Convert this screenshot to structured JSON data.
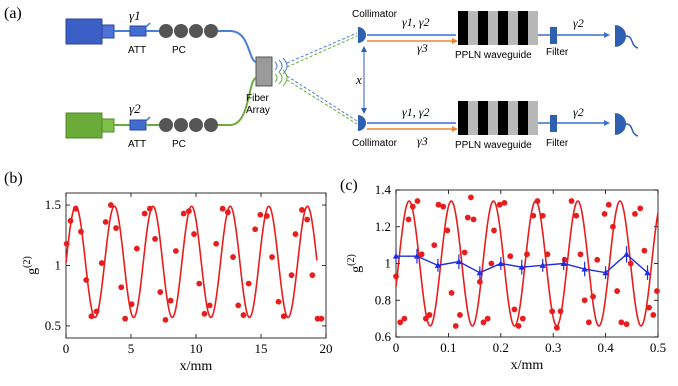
{
  "panel_labels": {
    "a": "(a)",
    "b": "(b)",
    "c": "(c)"
  },
  "setup": {
    "top_source_photon": "γ1",
    "bottom_source_photon": "γ2",
    "att_label": "ATT",
    "pc_label": "PC",
    "fiber_array_line1": "Fiber",
    "fiber_array_line2": "Array",
    "collimator_label": "Collimator",
    "distance_label": "x",
    "input_photons": "γ1, γ2",
    "generated_photon": "γ3",
    "waveguide_label": "PPLN waveguide",
    "filter_label": "Filter",
    "output_photon": "γ2",
    "colors": {
      "top_source": "#3b5fc4",
      "bottom_source": "#6aab3a",
      "fiber_blue": "#4a7fd4",
      "fiber_green": "#6aab3a",
      "pump_orange": "#e8852f",
      "detector": "#2f5fb0"
    }
  },
  "chart_data": [
    {
      "panel": "b",
      "type": "scatter",
      "xlabel": "x/mm",
      "ylabel": "g(2)",
      "xlim": [
        0,
        20
      ],
      "ylim": [
        0.4,
        1.6
      ],
      "xticks": [
        0,
        5,
        10,
        15,
        20
      ],
      "yticks": [
        0.5,
        1,
        1.5
      ],
      "grid": false,
      "fit": {
        "form": "cosine",
        "offset": 1.03,
        "amplitude": 0.46,
        "period": 2.97,
        "phase_peak_at": 0.75,
        "x_range": [
          0,
          19.3
        ],
        "color": "#e81d1d"
      },
      "series": [
        {
          "marker_color": "#e81d1d",
          "points": [
            [
              0.05,
              1.18
            ],
            [
              0.35,
              1.37
            ],
            [
              0.75,
              1.47
            ],
            [
              1.15,
              1.28
            ],
            [
              1.55,
              0.88
            ],
            [
              1.95,
              0.58
            ],
            [
              2.35,
              0.62
            ],
            [
              2.75,
              1.02
            ],
            [
              3.05,
              1.36
            ],
            [
              3.45,
              1.5
            ],
            [
              3.85,
              1.31
            ],
            [
              4.25,
              0.82
            ],
            [
              4.55,
              0.56
            ],
            [
              5.05,
              0.68
            ],
            [
              5.45,
              1.14
            ],
            [
              6.05,
              1.43
            ],
            [
              6.45,
              1.47
            ],
            [
              6.85,
              1.22
            ],
            [
              7.25,
              0.78
            ],
            [
              7.65,
              0.55
            ],
            [
              8.05,
              0.71
            ],
            [
              8.45,
              1.12
            ],
            [
              9.05,
              1.43
            ],
            [
              9.45,
              1.45
            ],
            [
              9.85,
              1.26
            ],
            [
              10.25,
              0.85
            ],
            [
              10.65,
              0.6
            ],
            [
              11.05,
              0.67
            ],
            [
              11.55,
              1.18
            ],
            [
              12.05,
              1.47
            ],
            [
              12.45,
              1.44
            ],
            [
              12.85,
              1.07
            ],
            [
              13.25,
              0.67
            ],
            [
              13.65,
              0.59
            ],
            [
              14.05,
              0.85
            ],
            [
              14.55,
              1.3
            ],
            [
              14.95,
              1.42
            ],
            [
              15.45,
              1.41
            ],
            [
              15.85,
              1.07
            ],
            [
              16.35,
              0.7
            ],
            [
              16.75,
              0.58
            ],
            [
              17.35,
              0.92
            ],
            [
              17.65,
              1.26
            ],
            [
              18.15,
              1.46
            ],
            [
              18.55,
              1.38
            ],
            [
              18.95,
              0.92
            ],
            [
              19.35,
              0.56
            ],
            [
              19.65,
              0.56
            ]
          ]
        }
      ]
    },
    {
      "panel": "c",
      "type": "scatter",
      "xlabel": "x/mm",
      "ylabel": "g(2)",
      "xlim": [
        0,
        0.5
      ],
      "ylim": [
        0.6,
        1.4
      ],
      "xticks": [
        0,
        0.1,
        0.2,
        0.3,
        0.4,
        0.5
      ],
      "yticks": [
        0.6,
        0.8,
        1,
        1.2,
        1.4
      ],
      "grid": false,
      "fit": {
        "form": "cosine",
        "offset": 1.0,
        "amplitude": 0.34,
        "period": 0.0805,
        "phase_peak_at": 0.025,
        "x_range": [
          0,
          0.5
        ],
        "color": "#e81d1d"
      },
      "series": [
        {
          "marker_color": "#e81d1d",
          "points": [
            [
              0.0,
              0.93
            ],
            [
              0.008,
              0.68
            ],
            [
              0.016,
              0.7
            ],
            [
              0.024,
              1.24
            ],
            [
              0.032,
              1.31
            ],
            [
              0.041,
              1.34
            ],
            [
              0.049,
              1.05
            ],
            [
              0.057,
              0.7
            ],
            [
              0.064,
              0.72
            ],
            [
              0.073,
              1.1
            ],
            [
              0.081,
              1.32
            ],
            [
              0.09,
              1.31
            ],
            [
              0.098,
              1.18
            ],
            [
              0.106,
              0.84
            ],
            [
              0.114,
              0.66
            ],
            [
              0.122,
              0.72
            ],
            [
              0.131,
              1.06
            ],
            [
              0.137,
              1.25
            ],
            [
              0.143,
              1.36
            ],
            [
              0.148,
              1.24
            ],
            [
              0.16,
              0.9
            ],
            [
              0.167,
              0.68
            ],
            [
              0.175,
              0.7
            ],
            [
              0.182,
              1.0
            ],
            [
              0.187,
              1.18
            ],
            [
              0.198,
              1.32
            ],
            [
              0.207,
              1.33
            ],
            [
              0.218,
              1.04
            ],
            [
              0.226,
              0.75
            ],
            [
              0.234,
              0.66
            ],
            [
              0.242,
              0.7
            ],
            [
              0.25,
              1.05
            ],
            [
              0.262,
              1.26
            ],
            [
              0.27,
              1.34
            ],
            [
              0.28,
              1.26
            ],
            [
              0.289,
              1.05
            ],
            [
              0.298,
              0.74
            ],
            [
              0.307,
              0.65
            ],
            [
              0.314,
              0.74
            ],
            [
              0.322,
              1.02
            ],
            [
              0.335,
              1.34
            ],
            [
              0.344,
              1.26
            ],
            [
              0.352,
              1.05
            ],
            [
              0.36,
              0.8
            ],
            [
              0.368,
              0.68
            ],
            [
              0.376,
              0.82
            ],
            [
              0.384,
              1.02
            ],
            [
              0.398,
              1.27
            ],
            [
              0.406,
              1.32
            ],
            [
              0.414,
              1.2
            ],
            [
              0.422,
              0.85
            ],
            [
              0.43,
              0.68
            ],
            [
              0.44,
              0.67
            ],
            [
              0.448,
              1.0
            ],
            [
              0.456,
              1.27
            ],
            [
              0.466,
              1.3
            ],
            [
              0.474,
              1.07
            ],
            [
              0.483,
              0.76
            ],
            [
              0.491,
              0.72
            ],
            [
              0.498,
              0.85
            ]
          ]
        },
        {
          "marker_color": "#1f2fe0",
          "line_color": "#1f2fe0",
          "points": [
            [
              0.0,
              1.04
            ],
            [
              0.04,
              1.04
            ],
            [
              0.08,
              0.99
            ],
            [
              0.12,
              1.01
            ],
            [
              0.16,
              0.95
            ],
            [
              0.2,
              1.0
            ],
            [
              0.24,
              0.98
            ],
            [
              0.28,
              0.99
            ],
            [
              0.32,
              1.0
            ],
            [
              0.36,
              0.97
            ],
            [
              0.4,
              0.95
            ],
            [
              0.44,
              1.05
            ],
            [
              0.48,
              0.95
            ]
          ],
          "error": [
            0.035,
            0.04,
            0.035,
            0.04,
            0.035,
            0.035,
            0.04,
            0.035,
            0.035,
            0.04,
            0.035,
            0.045,
            0.04
          ]
        }
      ]
    }
  ]
}
